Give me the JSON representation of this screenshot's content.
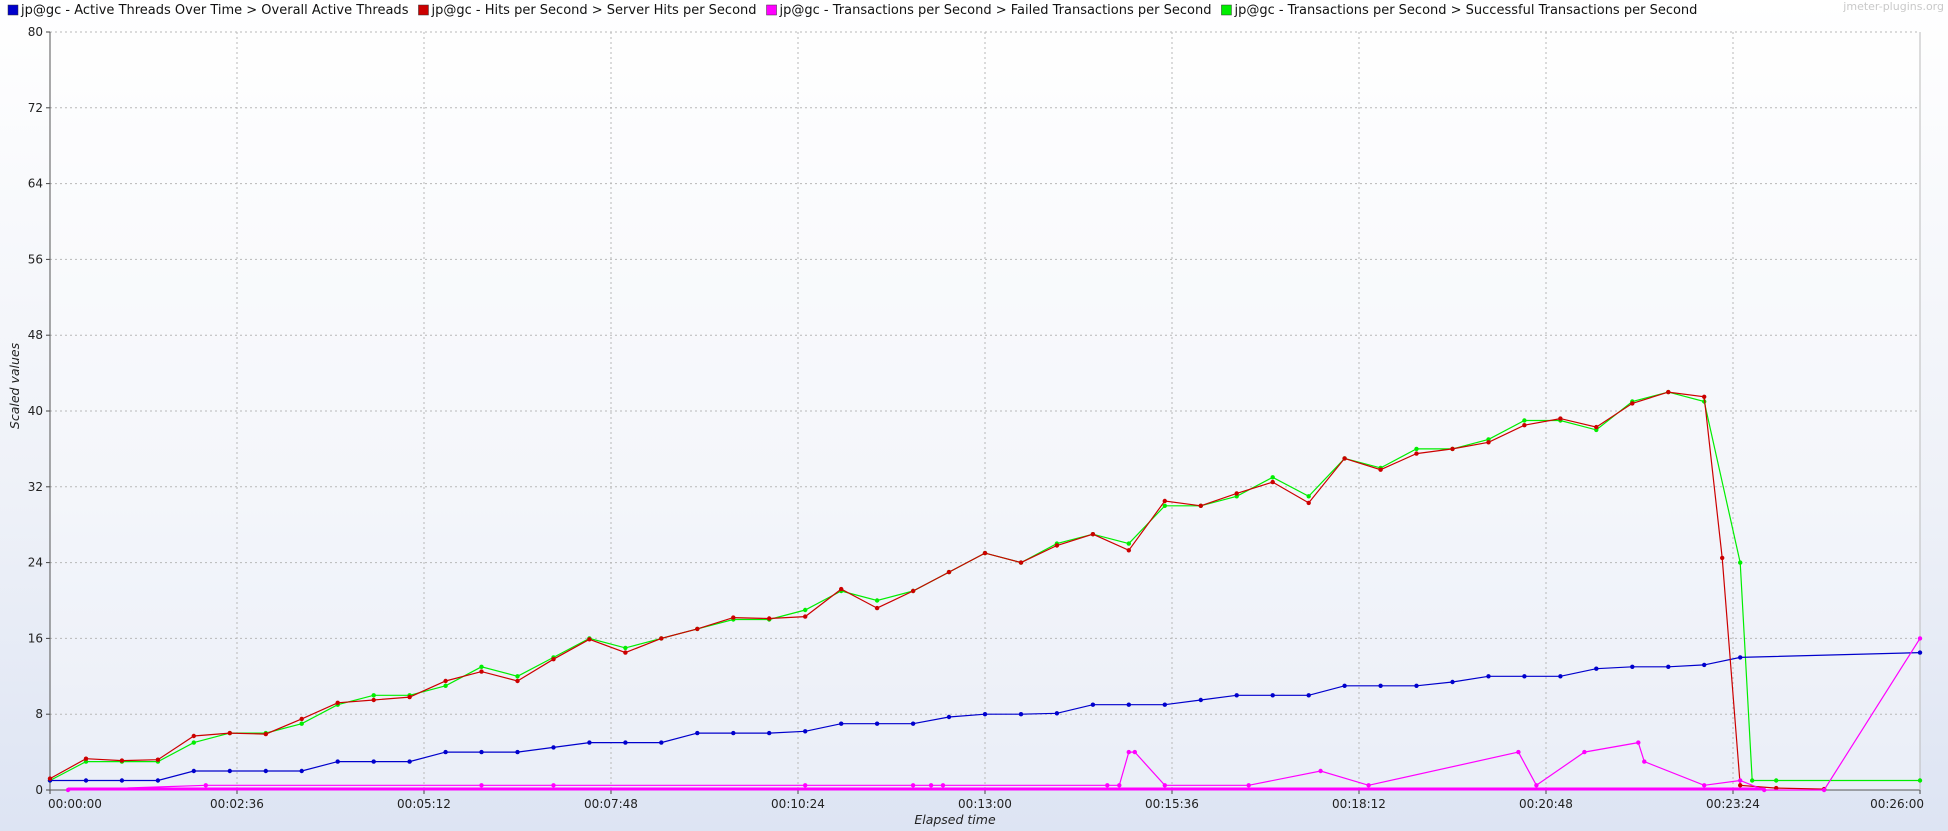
{
  "watermark": "jmeter-plugins.org",
  "chart_data": {
    "type": "line",
    "xlabel": "Elapsed time",
    "ylabel": "Scaled values",
    "ylim": [
      0,
      80
    ],
    "xlim_seconds": [
      0,
      1560
    ],
    "y_ticks": [
      "0",
      "8",
      "16",
      "24",
      "32",
      "40",
      "48",
      "56",
      "64",
      "72",
      "80"
    ],
    "x_ticks": [
      "00:00:00",
      "00:02:36",
      "00:05:12",
      "00:07:48",
      "00:10:24",
      "00:13:00",
      "00:15:36",
      "00:18:12",
      "00:20:48",
      "00:23:24",
      "00:26:00"
    ],
    "grid": true,
    "legend_position": "top",
    "series": [
      {
        "name": "jp@gc - Active Threads Over Time > Overall Active Threads",
        "color": "#0000cc",
        "x": [
          0,
          30,
          60,
          90,
          120,
          150,
          180,
          210,
          240,
          270,
          300,
          330,
          360,
          390,
          420,
          450,
          480,
          510,
          540,
          570,
          600,
          630,
          660,
          690,
          720,
          750,
          780,
          810,
          840,
          870,
          900,
          930,
          960,
          990,
          1020,
          1050,
          1080,
          1110,
          1140,
          1170,
          1200,
          1230,
          1260,
          1290,
          1320,
          1350,
          1380,
          1410,
          1560
        ],
        "values": [
          1,
          1,
          1,
          1,
          2,
          2,
          2,
          2,
          3,
          3,
          3,
          4,
          4,
          4,
          4.5,
          5,
          5,
          5,
          6,
          6,
          6,
          6.2,
          7,
          7,
          7,
          7.7,
          8,
          8,
          8.1,
          9,
          9,
          9,
          9.5,
          10,
          10,
          10,
          11,
          11,
          11,
          11.4,
          12,
          12,
          12,
          12.8,
          13,
          13,
          13.2,
          14,
          14.5
        ]
      },
      {
        "name": "jp@gc - Hits per Second > Server Hits per Second",
        "color": "#cc0000",
        "x": [
          0,
          30,
          60,
          90,
          120,
          150,
          180,
          210,
          240,
          270,
          300,
          330,
          360,
          390,
          420,
          450,
          480,
          510,
          540,
          570,
          600,
          630,
          660,
          690,
          720,
          750,
          780,
          810,
          840,
          870,
          900,
          930,
          960,
          990,
          1020,
          1050,
          1080,
          1110,
          1140,
          1170,
          1200,
          1230,
          1260,
          1290,
          1320,
          1350,
          1380,
          1395,
          1410,
          1440,
          1480
        ],
        "values": [
          1.2,
          3.3,
          3.1,
          3.2,
          5.7,
          6,
          5.9,
          7.5,
          9.2,
          9.5,
          9.8,
          11.5,
          12.5,
          11.5,
          13.8,
          15.9,
          14.5,
          16,
          17,
          18.2,
          18.1,
          18.3,
          21.2,
          19.2,
          21,
          23,
          25,
          24,
          25.8,
          27,
          25.3,
          30.5,
          30,
          31.3,
          32.5,
          30.3,
          35,
          33.8,
          35.5,
          36,
          36.7,
          38.5,
          39.2,
          38.3,
          40.8,
          42,
          41.5,
          24.5,
          0.5,
          0.2,
          0.1
        ]
      },
      {
        "name": "jp@gc - Transactions per Second > Failed Transactions per Second",
        "color": "#ff00ff",
        "x": [
          15,
          130,
          360,
          420,
          630,
          720,
          735,
          745,
          882,
          892,
          900,
          905,
          930,
          1000,
          1060,
          1100,
          1225,
          1240,
          1280,
          1325,
          1330,
          1380,
          1410,
          1430,
          1480,
          1560
        ],
        "values": [
          0,
          0.5,
          0.5,
          0.5,
          0.5,
          0.5,
          0.5,
          0.5,
          0.5,
          0.5,
          4,
          4,
          0.5,
          0.5,
          2,
          0.5,
          4,
          0.5,
          4,
          5,
          3,
          0.5,
          1,
          0,
          0,
          16
        ]
      },
      {
        "name": "jp@gc - Transactions per Second > Successful Transactions per Second",
        "color": "#00ee00",
        "x": [
          0,
          30,
          60,
          90,
          120,
          150,
          180,
          210,
          240,
          270,
          300,
          330,
          360,
          390,
          420,
          450,
          480,
          510,
          540,
          570,
          600,
          630,
          660,
          690,
          720,
          750,
          780,
          810,
          840,
          870,
          900,
          930,
          960,
          990,
          1020,
          1050,
          1080,
          1110,
          1140,
          1170,
          1200,
          1230,
          1260,
          1290,
          1320,
          1350,
          1380,
          1410,
          1420,
          1440,
          1560
        ],
        "values": [
          1,
          3,
          3,
          3,
          5,
          6,
          6,
          7,
          9,
          10,
          10,
          11,
          13,
          12,
          14,
          16,
          15,
          16,
          17,
          18,
          18,
          19,
          21,
          20,
          21,
          23,
          25,
          24,
          26,
          27,
          26,
          30,
          30,
          31,
          33,
          31,
          35,
          34,
          36,
          36,
          37,
          39,
          39,
          38,
          41,
          42,
          41,
          24,
          1,
          1,
          1
        ]
      }
    ]
  }
}
